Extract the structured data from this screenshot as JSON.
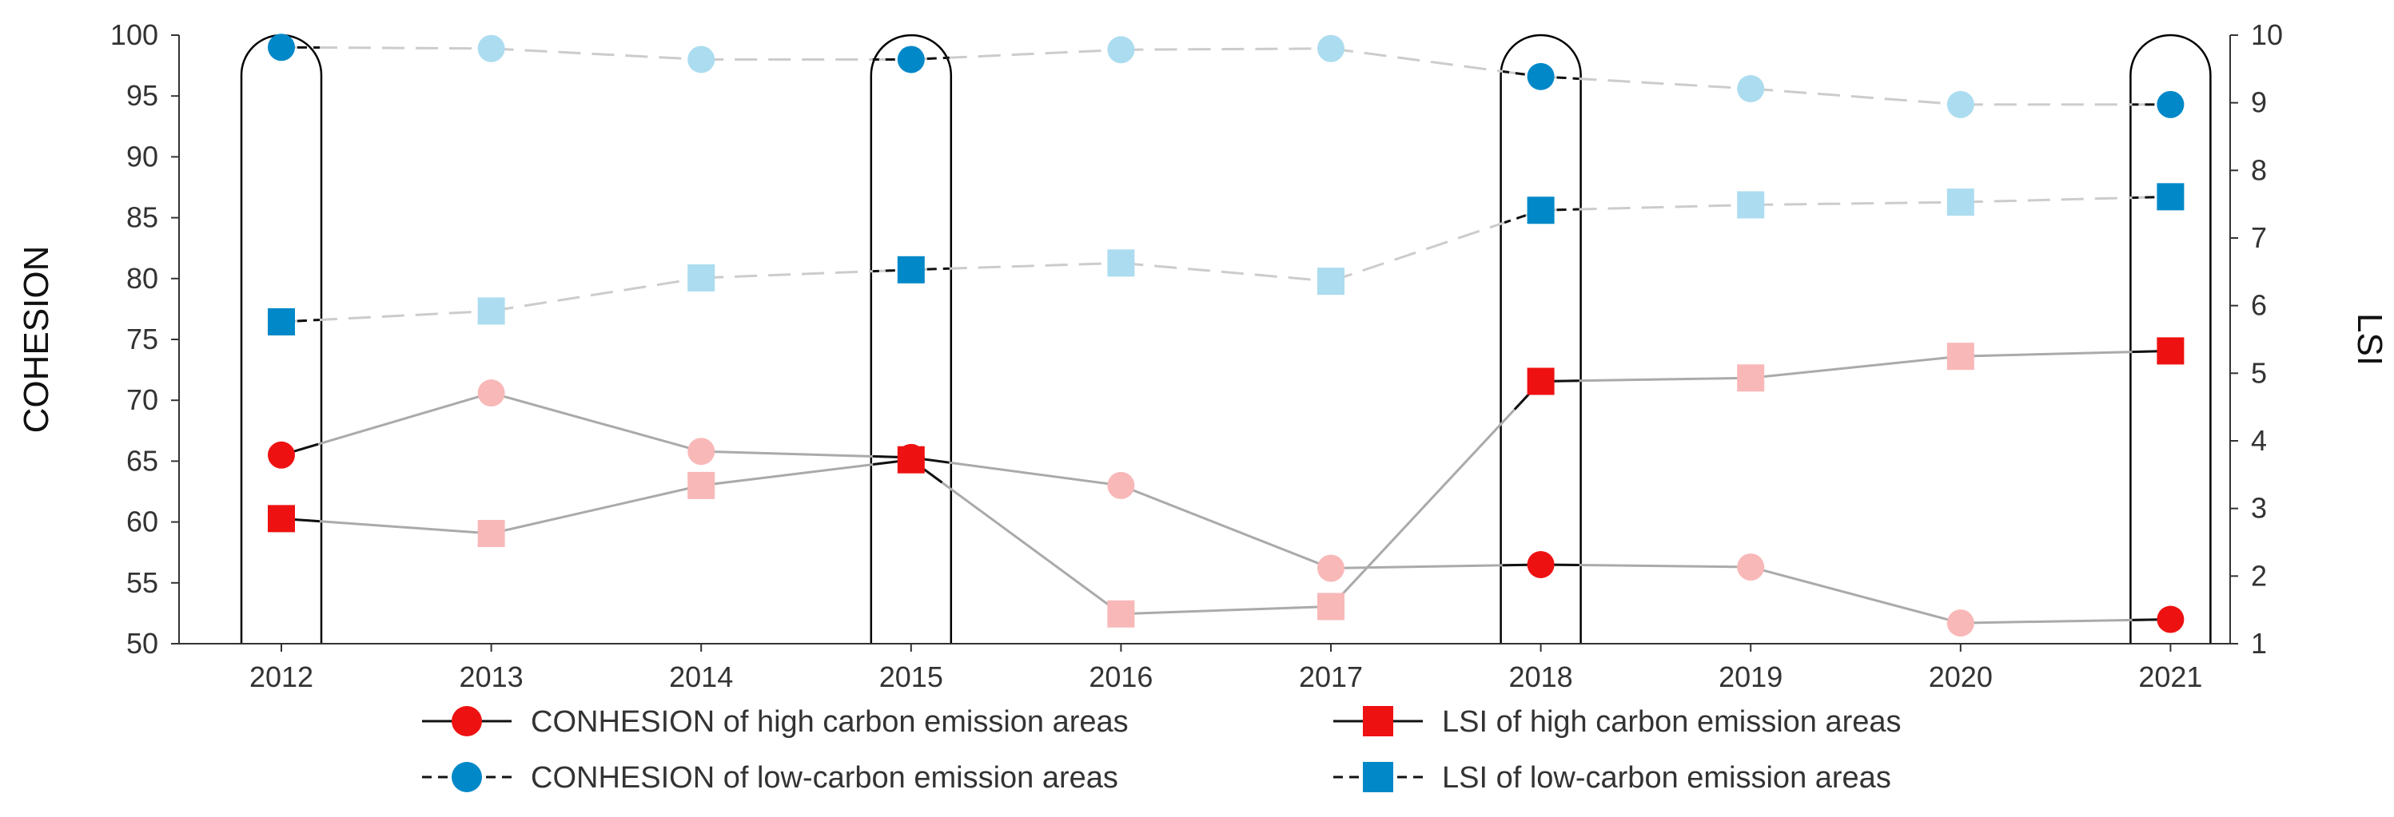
{
  "chart_data": {
    "type": "line",
    "title": "",
    "categories": [
      "2012",
      "2013",
      "2014",
      "2015",
      "2016",
      "2017",
      "2018",
      "2019",
      "2020",
      "2021"
    ],
    "highlighted_years": [
      "2012",
      "2015",
      "2018",
      "2021"
    ],
    "y_left": {
      "label": "COHESION",
      "ylim": [
        50,
        100
      ],
      "ticks": [
        "50",
        "55",
        "60",
        "65",
        "70",
        "75",
        "80",
        "85",
        "90",
        "95",
        "100"
      ]
    },
    "y_right": {
      "label": "LSI",
      "ylim": [
        1,
        10
      ],
      "ticks": [
        "1",
        "2",
        "3",
        "4",
        "5",
        "6",
        "7",
        "8",
        "9",
        "10"
      ]
    },
    "series": [
      {
        "name": "CONHESION of high carbon emission areas",
        "axis": "left",
        "marker": "circle",
        "line": "solid",
        "color": "#ee1111",
        "light_color": "#f9b8b8",
        "line_color": "#aaaaaa",
        "values": [
          65.5,
          70.6,
          65.8,
          65.3,
          63.0,
          56.2,
          56.5,
          56.3,
          51.7,
          52.0
        ]
      },
      {
        "name": "LSI of high carbon emission areas",
        "axis": "right",
        "marker": "square",
        "line": "solid",
        "color": "#ee1111",
        "light_color": "#f9b8b8",
        "line_color": "#aaaaaa",
        "values": [
          2.85,
          2.63,
          3.34,
          3.72,
          1.44,
          1.55,
          4.88,
          4.93,
          5.25,
          5.33
        ]
      },
      {
        "name": "CONHESION of low-carbon emission areas",
        "axis": "left",
        "marker": "circle",
        "line": "dashed",
        "color": "#0088c8",
        "light_color": "#acdcef",
        "line_color": "#cccccc",
        "values": [
          99.0,
          98.9,
          98.0,
          98.0,
          98.8,
          98.9,
          96.6,
          95.6,
          94.3,
          94.3
        ]
      },
      {
        "name": "LSI of low-carbon emission areas",
        "axis": "right",
        "marker": "square",
        "line": "dashed",
        "color": "#0088c8",
        "light_color": "#acdcef",
        "line_color": "#cccccc",
        "values": [
          5.76,
          5.92,
          6.41,
          6.53,
          6.63,
          6.36,
          7.41,
          7.49,
          7.53,
          7.61
        ]
      }
    ],
    "legend": [
      {
        "label": "CONHESION of high carbon emission areas",
        "marker": "circle",
        "line": "solid",
        "color": "#ee1111"
      },
      {
        "label": "LSI of high carbon emission areas",
        "marker": "square",
        "line": "solid",
        "color": "#ee1111"
      },
      {
        "label": "CONHESION of low-carbon emission areas",
        "marker": "circle",
        "line": "dashed",
        "color": "#0088c8"
      },
      {
        "label": "LSI of low-carbon emission areas",
        "marker": "square",
        "line": "dashed",
        "color": "#0088c8"
      }
    ],
    "legend_position": "bottom"
  }
}
